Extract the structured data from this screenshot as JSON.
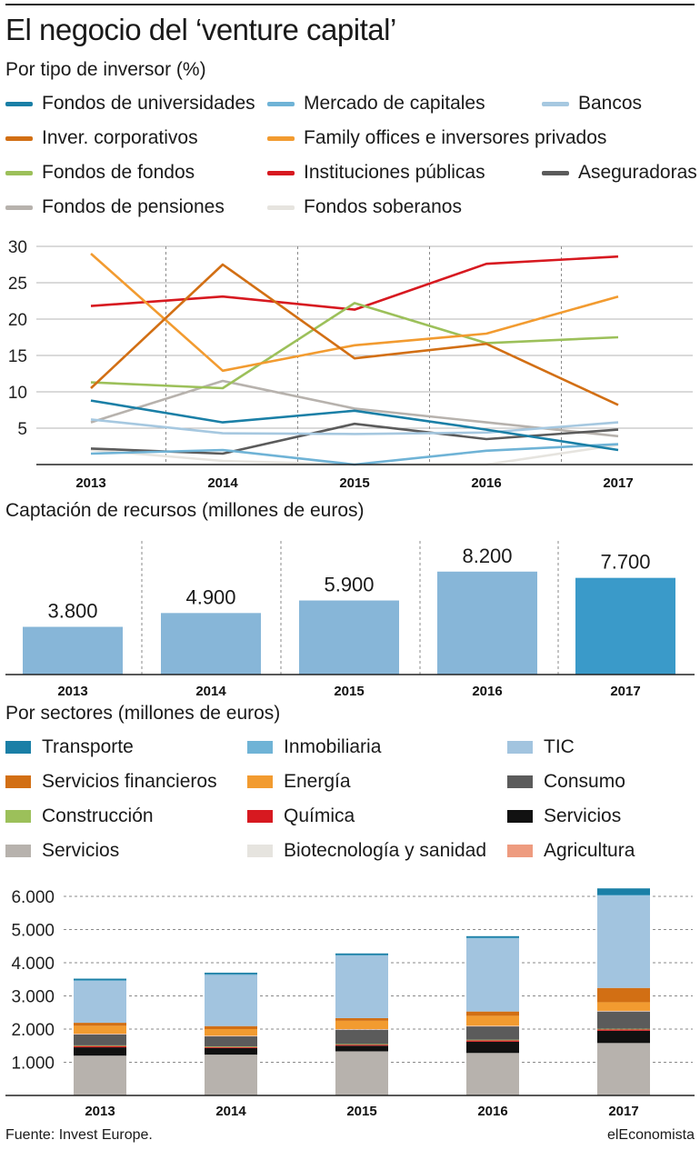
{
  "header": {
    "title": "El negocio del ‘venture capital’"
  },
  "investor_section": {
    "subtitle": "Por tipo de inversor (%)"
  },
  "funds_section": {
    "subtitle": "Captación de recursos (millones de euros)"
  },
  "sector_section": {
    "subtitle": "Por sectores (millones de euros)"
  },
  "footer": {
    "source": "Fuente: Invest Europe.",
    "brand": "elEconomista"
  },
  "chart_data": [
    {
      "type": "line",
      "x": [
        "2013",
        "2014",
        "2015",
        "2016",
        "2017"
      ],
      "ylim": [
        0,
        30
      ],
      "yticks": [
        "5",
        "10",
        "15",
        "20",
        "25",
        "30"
      ],
      "grid": "vertical dashed",
      "legend": "top",
      "series": [
        {
          "name": "Fondos de universidades",
          "color": "#1a7fa6",
          "values": [
            8.8,
            5.8,
            7.4,
            4.8,
            2.0
          ]
        },
        {
          "name": "Mercado de capitales",
          "color": "#6fb3d6",
          "values": [
            1.5,
            2.0,
            0.0,
            1.9,
            2.8
          ]
        },
        {
          "name": "Bancos",
          "color": "#a6c8e0",
          "values": [
            6.2,
            4.3,
            4.2,
            4.4,
            5.8
          ]
        },
        {
          "name": "Inver. corporativos",
          "color": "#d26f14",
          "values": [
            10.5,
            27.5,
            14.6,
            16.6,
            8.2
          ]
        },
        {
          "name": "Family offices e inversores privados",
          "color": "#f29b30",
          "values": [
            29.0,
            12.9,
            16.4,
            18.0,
            23.1
          ]
        },
        {
          "name": "Fondos de fondos",
          "color": "#9cc05a",
          "values": [
            11.3,
            10.5,
            22.2,
            16.7,
            17.5
          ]
        },
        {
          "name": "Instituciones públicas",
          "color": "#d71920",
          "values": [
            21.8,
            23.1,
            21.3,
            27.6,
            28.6
          ]
        },
        {
          "name": "Aseguradoras",
          "color": "#5b5b5b",
          "values": [
            2.2,
            1.5,
            5.6,
            3.5,
            4.8
          ]
        },
        {
          "name": "Fondos de pensiones",
          "color": "#b7b2ad",
          "values": [
            5.8,
            11.5,
            7.7,
            5.8,
            3.9
          ]
        },
        {
          "name": "Fondos soberanos",
          "color": "#e6e4df",
          "values": [
            2.0,
            0.5,
            0.0,
            0.0,
            2.7
          ]
        }
      ]
    },
    {
      "type": "bar",
      "categories": [
        "2013",
        "2014",
        "2015",
        "2016",
        "2017"
      ],
      "values": [
        3800,
        4900,
        5900,
        8200,
        7700
      ],
      "labels": [
        "3.800",
        "4.900",
        "5.900",
        "8.200",
        "7.700"
      ],
      "colors": [
        "#87b6d8",
        "#87b6d8",
        "#87b6d8",
        "#87b6d8",
        "#3a9ac9"
      ]
    },
    {
      "type": "bar",
      "stacked": true,
      "categories": [
        "2013",
        "2014",
        "2015",
        "2016",
        "2017"
      ],
      "ylim": [
        0,
        6500
      ],
      "yticks": [
        "1.000",
        "2.000",
        "3.000",
        "4.000",
        "5.000",
        "6.000"
      ],
      "legend": "top",
      "series": [
        {
          "name": "Servicios",
          "color": "#b7b2ad",
          "values": [
            1200,
            1230,
            1330,
            1280,
            1580
          ]
        },
        {
          "name": "Servicios",
          "color": "#111111",
          "values": [
            250,
            200,
            170,
            340,
            370
          ]
        },
        {
          "name": "Química",
          "color": "#d71920",
          "values": [
            40,
            30,
            30,
            40,
            40
          ]
        },
        {
          "name": "Construcción",
          "color": "#9cc05a",
          "values": [
            20,
            20,
            20,
            20,
            20
          ]
        },
        {
          "name": "Consumo",
          "color": "#5b5b5b",
          "values": [
            330,
            300,
            430,
            400,
            520
          ]
        },
        {
          "name": "Agricultura",
          "color": "#ee9b7f",
          "values": [
            10,
            10,
            10,
            10,
            10
          ]
        },
        {
          "name": "Biotecnología y sanidad",
          "color": "#e6e4df",
          "values": [
            10,
            10,
            10,
            10,
            10
          ]
        },
        {
          "name": "Energía",
          "color": "#f29b30",
          "values": [
            240,
            200,
            250,
            300,
            260
          ]
        },
        {
          "name": "Servicios financieros",
          "color": "#d26f14",
          "values": [
            90,
            90,
            80,
            130,
            430
          ]
        },
        {
          "name": "TIC",
          "color": "#a2c4df",
          "values": [
            1260,
            1540,
            1880,
            2200,
            2780
          ]
        },
        {
          "name": "Inmobiliaria",
          "color": "#6fb3d6",
          "values": [
            20,
            20,
            20,
            20,
            20
          ]
        },
        {
          "name": "Transporte",
          "color": "#1a7fa6",
          "values": [
            50,
            50,
            50,
            50,
            200
          ]
        }
      ]
    }
  ]
}
